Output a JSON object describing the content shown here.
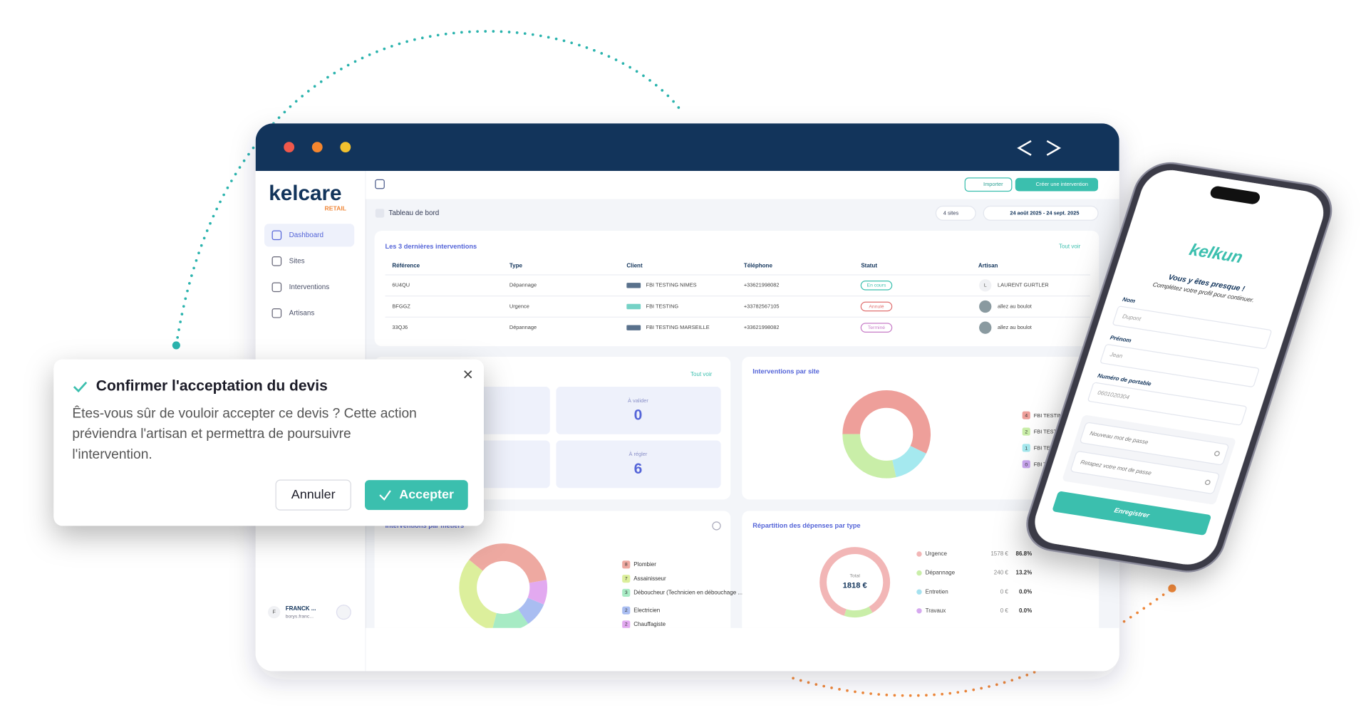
{
  "sidebar": {
    "brand": "kelcare",
    "brand_sub": "RETAIL",
    "menu": [
      "Dashboard",
      "Sites",
      "Interventions",
      "Artisans"
    ],
    "user": {
      "initial": "F",
      "name": "FRANCK ...",
      "email": "borys.franc..."
    }
  },
  "toolbar": {
    "import": "Importer",
    "create": "Créer une intervention",
    "breadcrumb": "Tableau de bord",
    "sites": "4 sites",
    "dates": "24 août 2025 - 24 sept. 2025"
  },
  "interventions": {
    "title": "Les 3 dernières interventions",
    "see_all": "Tout voir",
    "headers": [
      "Référence",
      "Type",
      "Client",
      "Téléphone",
      "Statut",
      "Artisan"
    ],
    "rows": [
      {
        "ref": "6U4QU",
        "type": "Dépannage",
        "client": "FBI TESTING NIMES",
        "phone": "+33621998082",
        "status": "En cours",
        "avatar": "L",
        "artisan": "LAURENT GURTLER"
      },
      {
        "ref": "BFGGZ",
        "type": "Urgence",
        "client": "FBI TESTING",
        "phone": "+33782567105",
        "status": "Annulé",
        "artisan": "allez au boulot"
      },
      {
        "ref": "33QJ6",
        "type": "Dépannage",
        "client": "FBI TESTING MARSEILLE",
        "phone": "+33621998082",
        "status": "Terminé",
        "artisan": "allez au boulot"
      }
    ]
  },
  "devis": {
    "see_all": "Tout voir",
    "kpis": [
      {
        "label": "À valider",
        "value": 0
      },
      {
        "label": "À régler",
        "value": 6
      }
    ]
  },
  "site_chart": {
    "title": "Interventions par site",
    "items": [
      {
        "count": 4,
        "label": "FBI TESTING",
        "color": "#ee9f9a"
      },
      {
        "count": 2,
        "label": "FBI TESTIN MARSEIL",
        "color": "#c9eea8"
      },
      {
        "count": 1,
        "label": "FBI TEST OUEST",
        "color": "#a5e9ef"
      },
      {
        "count": 0,
        "label": "FBI TE",
        "color": "#c9a6ef"
      }
    ]
  },
  "trade_chart": {
    "title": "Interventions par métiers",
    "items": [
      {
        "count": 8,
        "label": "Plombier",
        "color": "#eea9a1"
      },
      {
        "count": 7,
        "label": "Assainisseur",
        "color": "#dcef9c"
      },
      {
        "count": 3,
        "label": "Déboucheur (Technicien en débouchage ...",
        "color": "#a7ebc4"
      },
      {
        "count": 2,
        "label": "Electricien",
        "color": "#a9bdf1"
      },
      {
        "count": 2,
        "label": "Chauffagiste",
        "color": "#e2a9f0"
      }
    ]
  },
  "expense_chart": {
    "title": "Répartition des dépenses par type",
    "total_label": "Total",
    "total": "1818 €",
    "items": [
      {
        "label": "Urgence",
        "amount": "1578 €",
        "share": {
          "value": 86.8,
          "label": "86.8%"
        },
        "color": "#f2b6b6"
      },
      {
        "label": "Dépannage",
        "amount": "240 €",
        "share": {
          "value": 13.2,
          "label": "13.2%"
        },
        "color": "#c9eea8"
      },
      {
        "label": "Entretien",
        "amount": "0 €",
        "share": {
          "value": 0,
          "label": "0.0%"
        },
        "color": "#a5e1ef"
      },
      {
        "label": "Travaux",
        "amount": "0 €",
        "share": {
          "value": 0,
          "label": "0.0%"
        },
        "color": "#d6a9ef"
      }
    ]
  },
  "dialog": {
    "title": "Confirmer l'acceptation du devis",
    "body": [
      "Êtes-vous sûr de vouloir accepter ce devis ? Cette action",
      "préviendra l'artisan et permettra de poursuivre",
      "l'intervention."
    ],
    "cancel": "Annuler",
    "accept": "Accepter"
  },
  "phone": {
    "brand": "kelkun",
    "heading": "Vous y êtes presque !",
    "subheading": "Complétez votre profil pour continuer.",
    "fields": [
      {
        "label": "Nom",
        "placeholder": "Dupont"
      },
      {
        "label": "Prénom",
        "placeholder": "Jean"
      },
      {
        "label": "Numéro de portable",
        "placeholder": "0601020304"
      }
    ],
    "passwords": [
      "Nouveau mot de passe",
      "Retapez votre mot de passe"
    ],
    "submit": "Enregistrer"
  }
}
